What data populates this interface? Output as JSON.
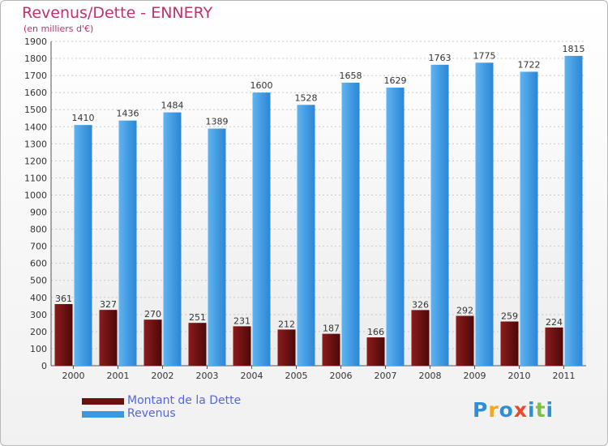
{
  "title": "Revenus/Dette - ENNERY",
  "subtitle": "(en milliers d'€)",
  "colors": {
    "dette": "#6b0f0f",
    "revenus": "#3a98e0",
    "title": "#c0306e"
  },
  "legend": {
    "dette": "Montant de la Dette",
    "revenus": "Revenus"
  },
  "logo": {
    "text": "Proxiti",
    "letters": [
      "P",
      "r",
      "o",
      "x",
      "i",
      "t",
      "i"
    ],
    "colors": [
      "#2e8fd6",
      "#f2a81d",
      "#2e8fd6",
      "#e64b2c",
      "#2e8fd6",
      "#7cc242",
      "#2e8fd6"
    ]
  },
  "chart_data": {
    "type": "bar",
    "title": "Revenus/Dette - ENNERY",
    "subtitle": "(en milliers d'€)",
    "categories": [
      "2000",
      "2001",
      "2002",
      "2003",
      "2004",
      "2005",
      "2006",
      "2007",
      "2008",
      "2009",
      "2010",
      "2011"
    ],
    "series": [
      {
        "name": "Montant de la Dette",
        "values": [
          361,
          327,
          270,
          251,
          231,
          212,
          187,
          166,
          326,
          292,
          259,
          224
        ]
      },
      {
        "name": "Revenus",
        "values": [
          1410,
          1436,
          1484,
          1389,
          1600,
          1528,
          1658,
          1629,
          1763,
          1775,
          1722,
          1815
        ]
      }
    ],
    "ylim": [
      0,
      1900
    ],
    "yticks": [
      0,
      100,
      200,
      300,
      400,
      500,
      600,
      700,
      800,
      900,
      1000,
      1100,
      1200,
      1300,
      1400,
      1500,
      1600,
      1700,
      1800,
      1900
    ],
    "grid": true,
    "legend_position": "bottom-left"
  }
}
